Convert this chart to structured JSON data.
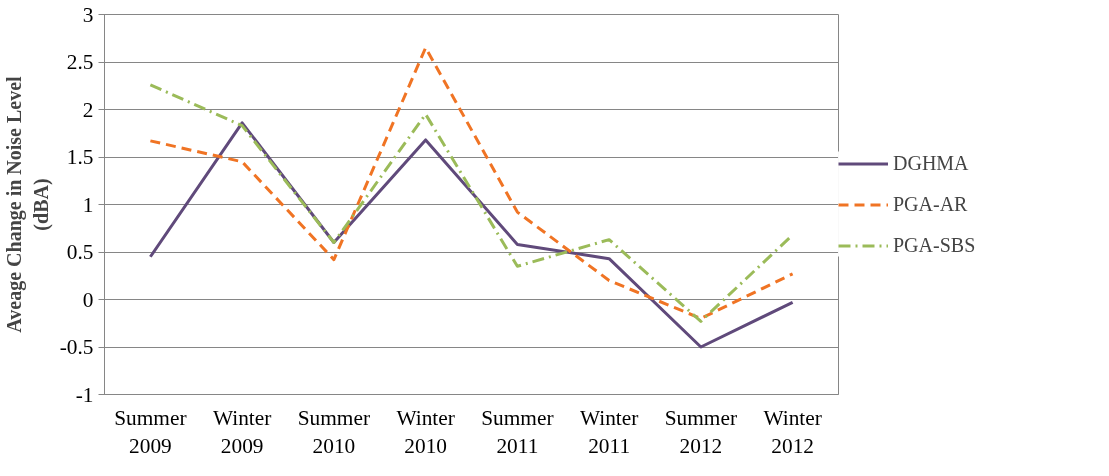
{
  "chart_data": {
    "type": "line",
    "ylabel": "Aveage Change in Noise Level (dBA)",
    "categories": [
      "Summer 2009",
      "Winter 2009",
      "Summer 2010",
      "Winter 2010",
      "Summer 2011",
      "Winter 2011",
      "Summer 2012",
      "Winter 2012"
    ],
    "series": [
      {
        "name": "DGHMA",
        "color": "#604a7b",
        "line_style": "solid",
        "values": [
          0.45,
          1.86,
          0.6,
          1.68,
          0.58,
          0.43,
          -0.5,
          -0.03
        ]
      },
      {
        "name": "PGA-AR",
        "color": "#f07424",
        "line_style": "dashed",
        "values": [
          1.67,
          1.45,
          0.42,
          2.65,
          0.92,
          0.2,
          -0.2,
          0.27
        ]
      },
      {
        "name": "PGA-SBS",
        "color": "#9bbb59",
        "line_style": "dashdot",
        "values": [
          2.26,
          1.83,
          0.6,
          1.95,
          0.35,
          0.63,
          -0.23,
          0.68
        ]
      }
    ],
    "ylim": [
      -1,
      3
    ],
    "yticks": [
      -1,
      -0.5,
      0,
      0.5,
      1,
      1.5,
      2,
      2.5,
      3
    ],
    "grid": "y",
    "legend": "right",
    "marker": "none"
  }
}
